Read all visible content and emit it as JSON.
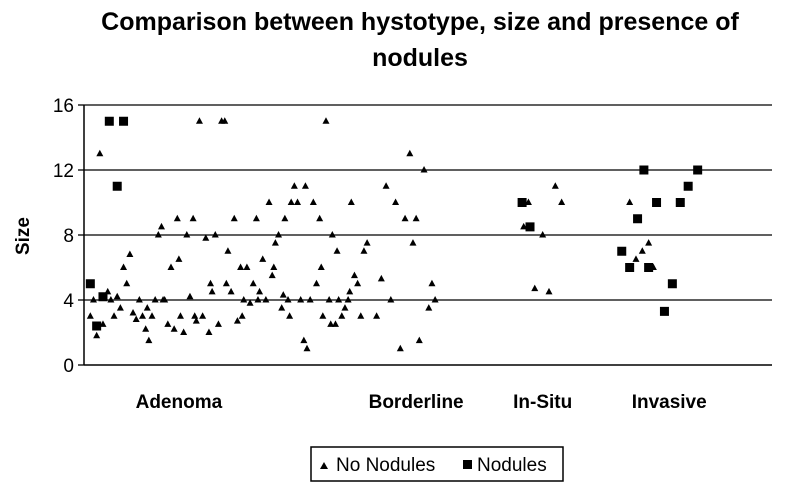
{
  "chart_data": {
    "type": "scatter",
    "title": "Comparison between hystotype, size and presence of nodules",
    "xlabel": "",
    "ylabel": "Size",
    "ylim": [
      0,
      16
    ],
    "yticks": [
      0,
      4,
      8,
      12,
      16
    ],
    "grid": true,
    "legend": "bottom",
    "categories": [
      "Adenoma",
      "Borderline",
      "In-Situ",
      "Invasive"
    ],
    "x_positions": [
      1.0,
      2.5,
      3.3,
      4.1
    ],
    "series": [
      {
        "name": "No Nodules",
        "marker": "triangle",
        "color": "#000000",
        "points": [
          [
            0.44,
            3.0
          ],
          [
            0.46,
            4.0
          ],
          [
            0.48,
            1.8
          ],
          [
            0.5,
            13.0
          ],
          [
            0.52,
            2.5
          ],
          [
            0.55,
            4.5
          ],
          [
            0.57,
            4.0
          ],
          [
            0.59,
            3.0
          ],
          [
            0.61,
            4.2
          ],
          [
            0.63,
            3.5
          ],
          [
            0.65,
            6.0
          ],
          [
            0.67,
            5.0
          ],
          [
            0.69,
            6.8
          ],
          [
            0.71,
            3.2
          ],
          [
            0.73,
            2.8
          ],
          [
            0.75,
            4.0
          ],
          [
            0.77,
            3.0
          ],
          [
            0.79,
            2.2
          ],
          [
            0.81,
            1.5
          ],
          [
            0.83,
            3.0
          ],
          [
            0.85,
            4.0
          ],
          [
            0.87,
            8.0
          ],
          [
            0.89,
            8.5
          ],
          [
            0.91,
            4.0
          ],
          [
            0.93,
            2.5
          ],
          [
            0.95,
            6.0
          ],
          [
            0.97,
            2.2
          ],
          [
            0.99,
            9.0
          ],
          [
            1.01,
            3.0
          ],
          [
            1.03,
            2.0
          ],
          [
            1.05,
            8.0
          ],
          [
            1.07,
            4.2
          ],
          [
            1.09,
            9.0
          ],
          [
            1.11,
            2.7
          ],
          [
            1.13,
            15.0
          ],
          [
            1.15,
            3.0
          ],
          [
            1.17,
            7.8
          ],
          [
            1.19,
            2.0
          ],
          [
            1.21,
            4.5
          ],
          [
            1.23,
            8.0
          ],
          [
            1.25,
            2.5
          ],
          [
            1.27,
            15.0
          ],
          [
            1.29,
            15.0
          ],
          [
            1.31,
            7.0
          ],
          [
            1.33,
            4.5
          ],
          [
            1.35,
            9.0
          ],
          [
            1.37,
            2.7
          ],
          [
            1.39,
            6.0
          ],
          [
            1.41,
            4.0
          ],
          [
            1.43,
            6.0
          ],
          [
            1.45,
            3.8
          ],
          [
            1.47,
            5.0
          ],
          [
            1.49,
            9.0
          ],
          [
            1.51,
            4.5
          ],
          [
            1.53,
            6.5
          ],
          [
            1.55,
            4.0
          ],
          [
            1.57,
            10.0
          ],
          [
            1.59,
            5.5
          ],
          [
            1.61,
            7.5
          ],
          [
            1.63,
            8.0
          ],
          [
            1.65,
            3.5
          ],
          [
            1.67,
            9.0
          ],
          [
            1.69,
            4.0
          ],
          [
            1.71,
            10.0
          ],
          [
            1.73,
            11.0
          ],
          [
            1.75,
            10.0
          ],
          [
            1.77,
            4.0
          ],
          [
            1.79,
            1.5
          ],
          [
            1.81,
            1.0
          ],
          [
            1.83,
            4.0
          ],
          [
            1.85,
            10.0
          ],
          [
            1.87,
            5.0
          ],
          [
            1.89,
            9.0
          ],
          [
            1.91,
            3.0
          ],
          [
            1.93,
            15.0
          ],
          [
            1.95,
            4.0
          ],
          [
            1.97,
            8.0
          ],
          [
            1.99,
            2.5
          ],
          [
            2.01,
            4.0
          ],
          [
            2.03,
            3.0
          ],
          [
            2.05,
            3.5
          ],
          [
            2.07,
            4.0
          ],
          [
            2.09,
            10.0
          ],
          [
            2.11,
            5.5
          ],
          [
            2.13,
            5.0
          ],
          [
            2.15,
            3.0
          ],
          [
            2.17,
            7.0
          ],
          [
            2.19,
            7.5
          ],
          [
            0.9,
            4.0
          ],
          [
            1.0,
            6.5
          ],
          [
            1.2,
            5.0
          ],
          [
            1.4,
            3.0
          ],
          [
            1.6,
            6.0
          ],
          [
            1.7,
            3.0
          ],
          [
            1.9,
            6.0
          ],
          [
            2.0,
            7.0
          ],
          [
            1.1,
            3.0
          ],
          [
            1.5,
            4.0
          ],
          [
            1.8,
            11.0
          ],
          [
            1.3,
            5.0
          ],
          [
            0.8,
            3.5
          ],
          [
            1.96,
            2.5
          ],
          [
            2.08,
            4.5
          ],
          [
            1.66,
            4.3
          ],
          [
            2.25,
            3.0
          ],
          [
            2.28,
            5.3
          ],
          [
            2.31,
            11.0
          ],
          [
            2.34,
            4.0
          ],
          [
            2.37,
            10.0
          ],
          [
            2.4,
            1.0
          ],
          [
            2.43,
            9.0
          ],
          [
            2.46,
            13.0
          ],
          [
            2.48,
            7.5
          ],
          [
            2.5,
            9.0
          ],
          [
            2.52,
            1.5
          ],
          [
            2.55,
            12.0
          ],
          [
            2.58,
            3.5
          ],
          [
            2.6,
            5.0
          ],
          [
            2.62,
            4.0
          ],
          [
            3.18,
            8.5
          ],
          [
            3.21,
            10.0
          ],
          [
            3.25,
            4.7
          ],
          [
            3.3,
            8.0
          ],
          [
            3.34,
            4.5
          ],
          [
            3.38,
            11.0
          ],
          [
            3.42,
            10.0
          ],
          [
            3.85,
            10.0
          ],
          [
            3.89,
            6.5
          ],
          [
            3.93,
            7.0
          ],
          [
            3.97,
            7.5
          ],
          [
            4.0,
            6.0
          ]
        ]
      },
      {
        "name": "Nodules",
        "marker": "square",
        "color": "#000000",
        "points": [
          [
            0.44,
            5.0
          ],
          [
            0.48,
            2.4
          ],
          [
            0.52,
            4.2
          ],
          [
            0.56,
            15.0
          ],
          [
            0.61,
            11.0
          ],
          [
            0.65,
            15.0
          ],
          [
            3.17,
            10.0
          ],
          [
            3.22,
            8.5
          ],
          [
            3.8,
            7.0
          ],
          [
            3.85,
            6.0
          ],
          [
            3.9,
            9.0
          ],
          [
            3.94,
            12.0
          ],
          [
            3.97,
            6.0
          ],
          [
            4.02,
            10.0
          ],
          [
            4.07,
            3.3
          ],
          [
            4.12,
            5.0
          ],
          [
            4.17,
            10.0
          ],
          [
            4.22,
            11.0
          ],
          [
            4.28,
            12.0
          ]
        ]
      }
    ]
  }
}
